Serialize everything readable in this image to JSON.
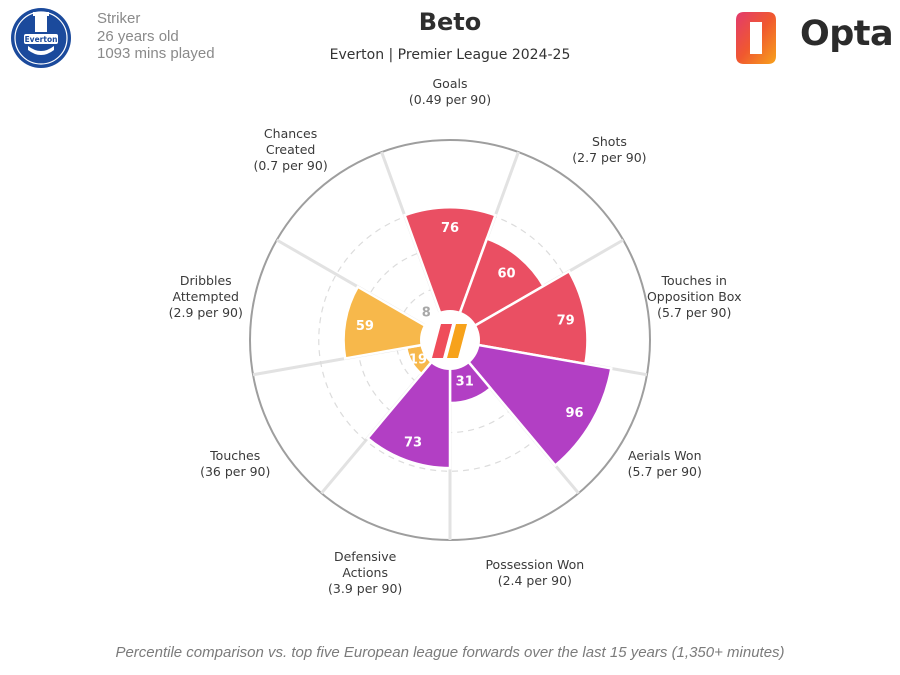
{
  "header": {
    "position": "Striker",
    "age": "26 years old",
    "minutes": "1093 mins played",
    "title": "Beto",
    "subtitle": "Everton | Premier League 2024-25",
    "brand": "Opta",
    "crest_text": "Everton"
  },
  "footnote": "Percentile comparison vs. top five European league forwards over the last 15 years (1,350+ minutes)",
  "colors": {
    "attacking": "#ea4f63",
    "possession": "#f7b84b",
    "defending": "#b23fc4",
    "grid": "#e2e2e2",
    "label": "#3a3a3a",
    "low_value": "#a8a8a8"
  },
  "chart_data": {
    "type": "polar-bar",
    "scale": [
      0,
      100
    ],
    "segments": [
      {
        "label": "Goals",
        "rate": "(0.49 per 90)",
        "value": 76,
        "group": "attacking"
      },
      {
        "label": "Shots",
        "rate": "(2.7 per 90)",
        "value": 60,
        "group": "attacking"
      },
      {
        "label": "Touches in Opposition Box",
        "rate": "(5.7 per 90)",
        "value": 79,
        "group": "attacking"
      },
      {
        "label": "Aerials Won",
        "rate": "(5.7 per 90)",
        "value": 96,
        "group": "defending"
      },
      {
        "label": "Possession Won",
        "rate": "(2.4 per 90)",
        "value": 31,
        "group": "defending"
      },
      {
        "label": "Defensive Actions",
        "rate": "(3.9 per 90)",
        "value": 73,
        "group": "defending"
      },
      {
        "label": "Touches",
        "rate": "(36 per 90)",
        "value": 19,
        "group": "possession"
      },
      {
        "label": "Dribbles Attempted",
        "rate": "(2.9 per 90)",
        "value": 59,
        "group": "possession"
      },
      {
        "label": "Chances Created",
        "rate": "(0.7 per 90)",
        "value": 8,
        "group": "possession"
      }
    ]
  }
}
